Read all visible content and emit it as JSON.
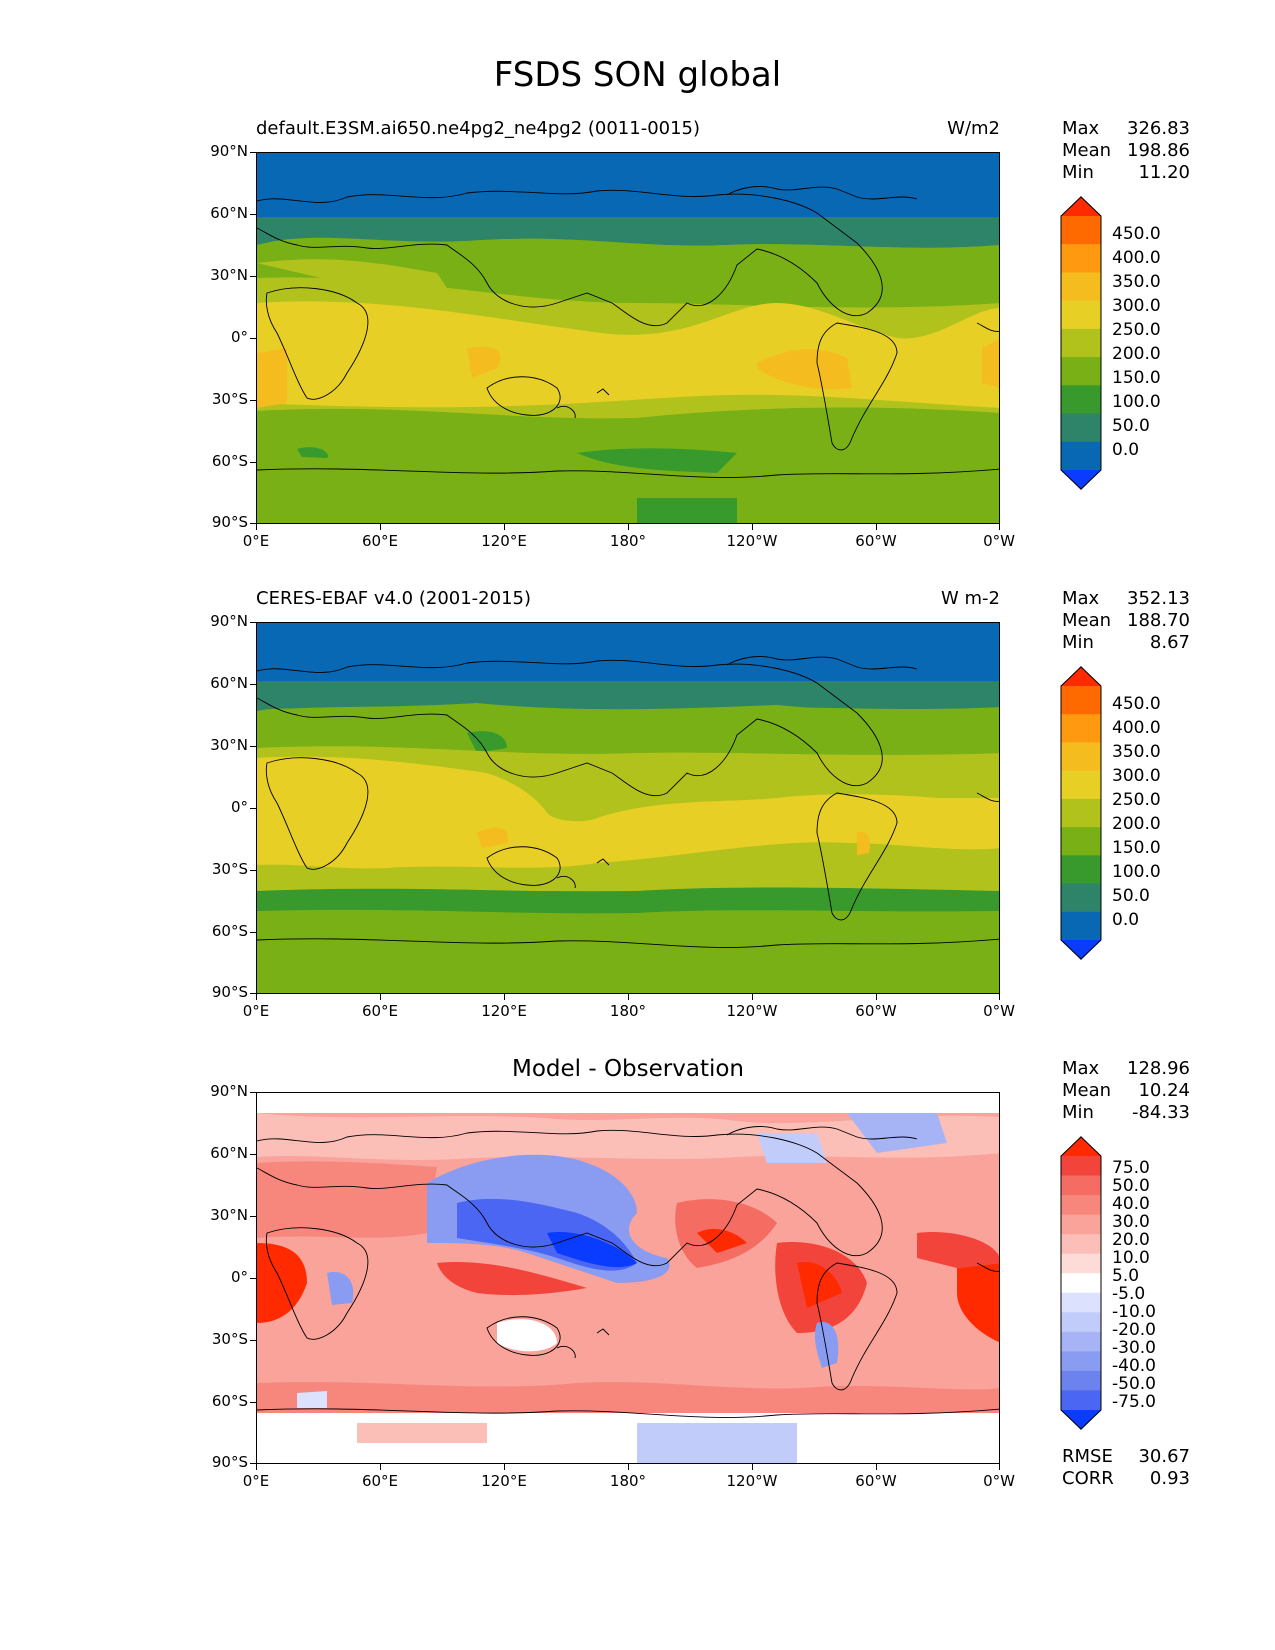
{
  "figure": {
    "title": "FSDS SON global"
  },
  "axes": {
    "lat_ticks": [
      "90°N",
      "60°N",
      "30°N",
      "0°",
      "30°S",
      "60°S",
      "90°S"
    ],
    "lon_ticks": [
      "0°E",
      "60°E",
      "120°E",
      "180°",
      "120°W",
      "60°W",
      "0°W"
    ]
  },
  "panels": [
    {
      "title_left": "default.E3SM.ai650.ne4pg2_ne4pg2 (0011-0015)",
      "title_right": "W/m2",
      "title_center": "",
      "stats": [
        {
          "label": "Max",
          "value": "326.83"
        },
        {
          "label": "Mean",
          "value": "198.86"
        },
        {
          "label": "Min",
          "value": "11.20"
        }
      ],
      "colorbar": {
        "labels": [
          "450.0",
          "400.0",
          "350.0",
          "300.0",
          "250.0",
          "200.0",
          "150.0",
          "100.0",
          "50.0",
          "0.0"
        ],
        "colors": [
          "#ff2a00",
          "#ff6a00",
          "#ff9a10",
          "#f5bc20",
          "#e8cf26",
          "#b2c21c",
          "#78b016",
          "#389a2c",
          "#2e8468",
          "#0868b4",
          "#0a3cff"
        ]
      }
    },
    {
      "title_left": "CERES-EBAF v4.0 (2001-2015)",
      "title_right": "W m-2",
      "title_center": "",
      "stats": [
        {
          "label": "Max",
          "value": "352.13"
        },
        {
          "label": "Mean",
          "value": "188.70"
        },
        {
          "label": "Min",
          "value": "8.67"
        }
      ],
      "colorbar": {
        "labels": [
          "450.0",
          "400.0",
          "350.0",
          "300.0",
          "250.0",
          "200.0",
          "150.0",
          "100.0",
          "50.0",
          "0.0"
        ],
        "colors": [
          "#ff2a00",
          "#ff6a00",
          "#ff9a10",
          "#f5bc20",
          "#e8cf26",
          "#b2c21c",
          "#78b016",
          "#389a2c",
          "#2e8468",
          "#0868b4",
          "#0a3cff"
        ]
      }
    },
    {
      "title_left": "",
      "title_right": "",
      "title_center": "Model - Observation",
      "stats": [
        {
          "label": "Max",
          "value": "128.96"
        },
        {
          "label": "Mean",
          "value": "10.24"
        },
        {
          "label": "Min",
          "value": "-84.33"
        }
      ],
      "extra_stats": [
        {
          "label": "RMSE",
          "value": "30.67"
        },
        {
          "label": "CORR",
          "value": "0.93"
        }
      ],
      "colorbar": {
        "labels": [
          "75.0",
          "50.0",
          "40.0",
          "30.0",
          "20.0",
          "10.0",
          "5.0",
          "-5.0",
          "-10.0",
          "-20.0",
          "-30.0",
          "-40.0",
          "-50.0",
          "-75.0"
        ],
        "colors": [
          "#ff2a00",
          "#f2443a",
          "#f56d62",
          "#f7877d",
          "#f9a39a",
          "#fbbfb8",
          "#fddcd8",
          "#ffffff",
          "#dce2fd",
          "#c2ccfa",
          "#a6b4f6",
          "#8a9cf2",
          "#6c82ef",
          "#4a66f3",
          "#0a3cff"
        ]
      }
    }
  ]
}
